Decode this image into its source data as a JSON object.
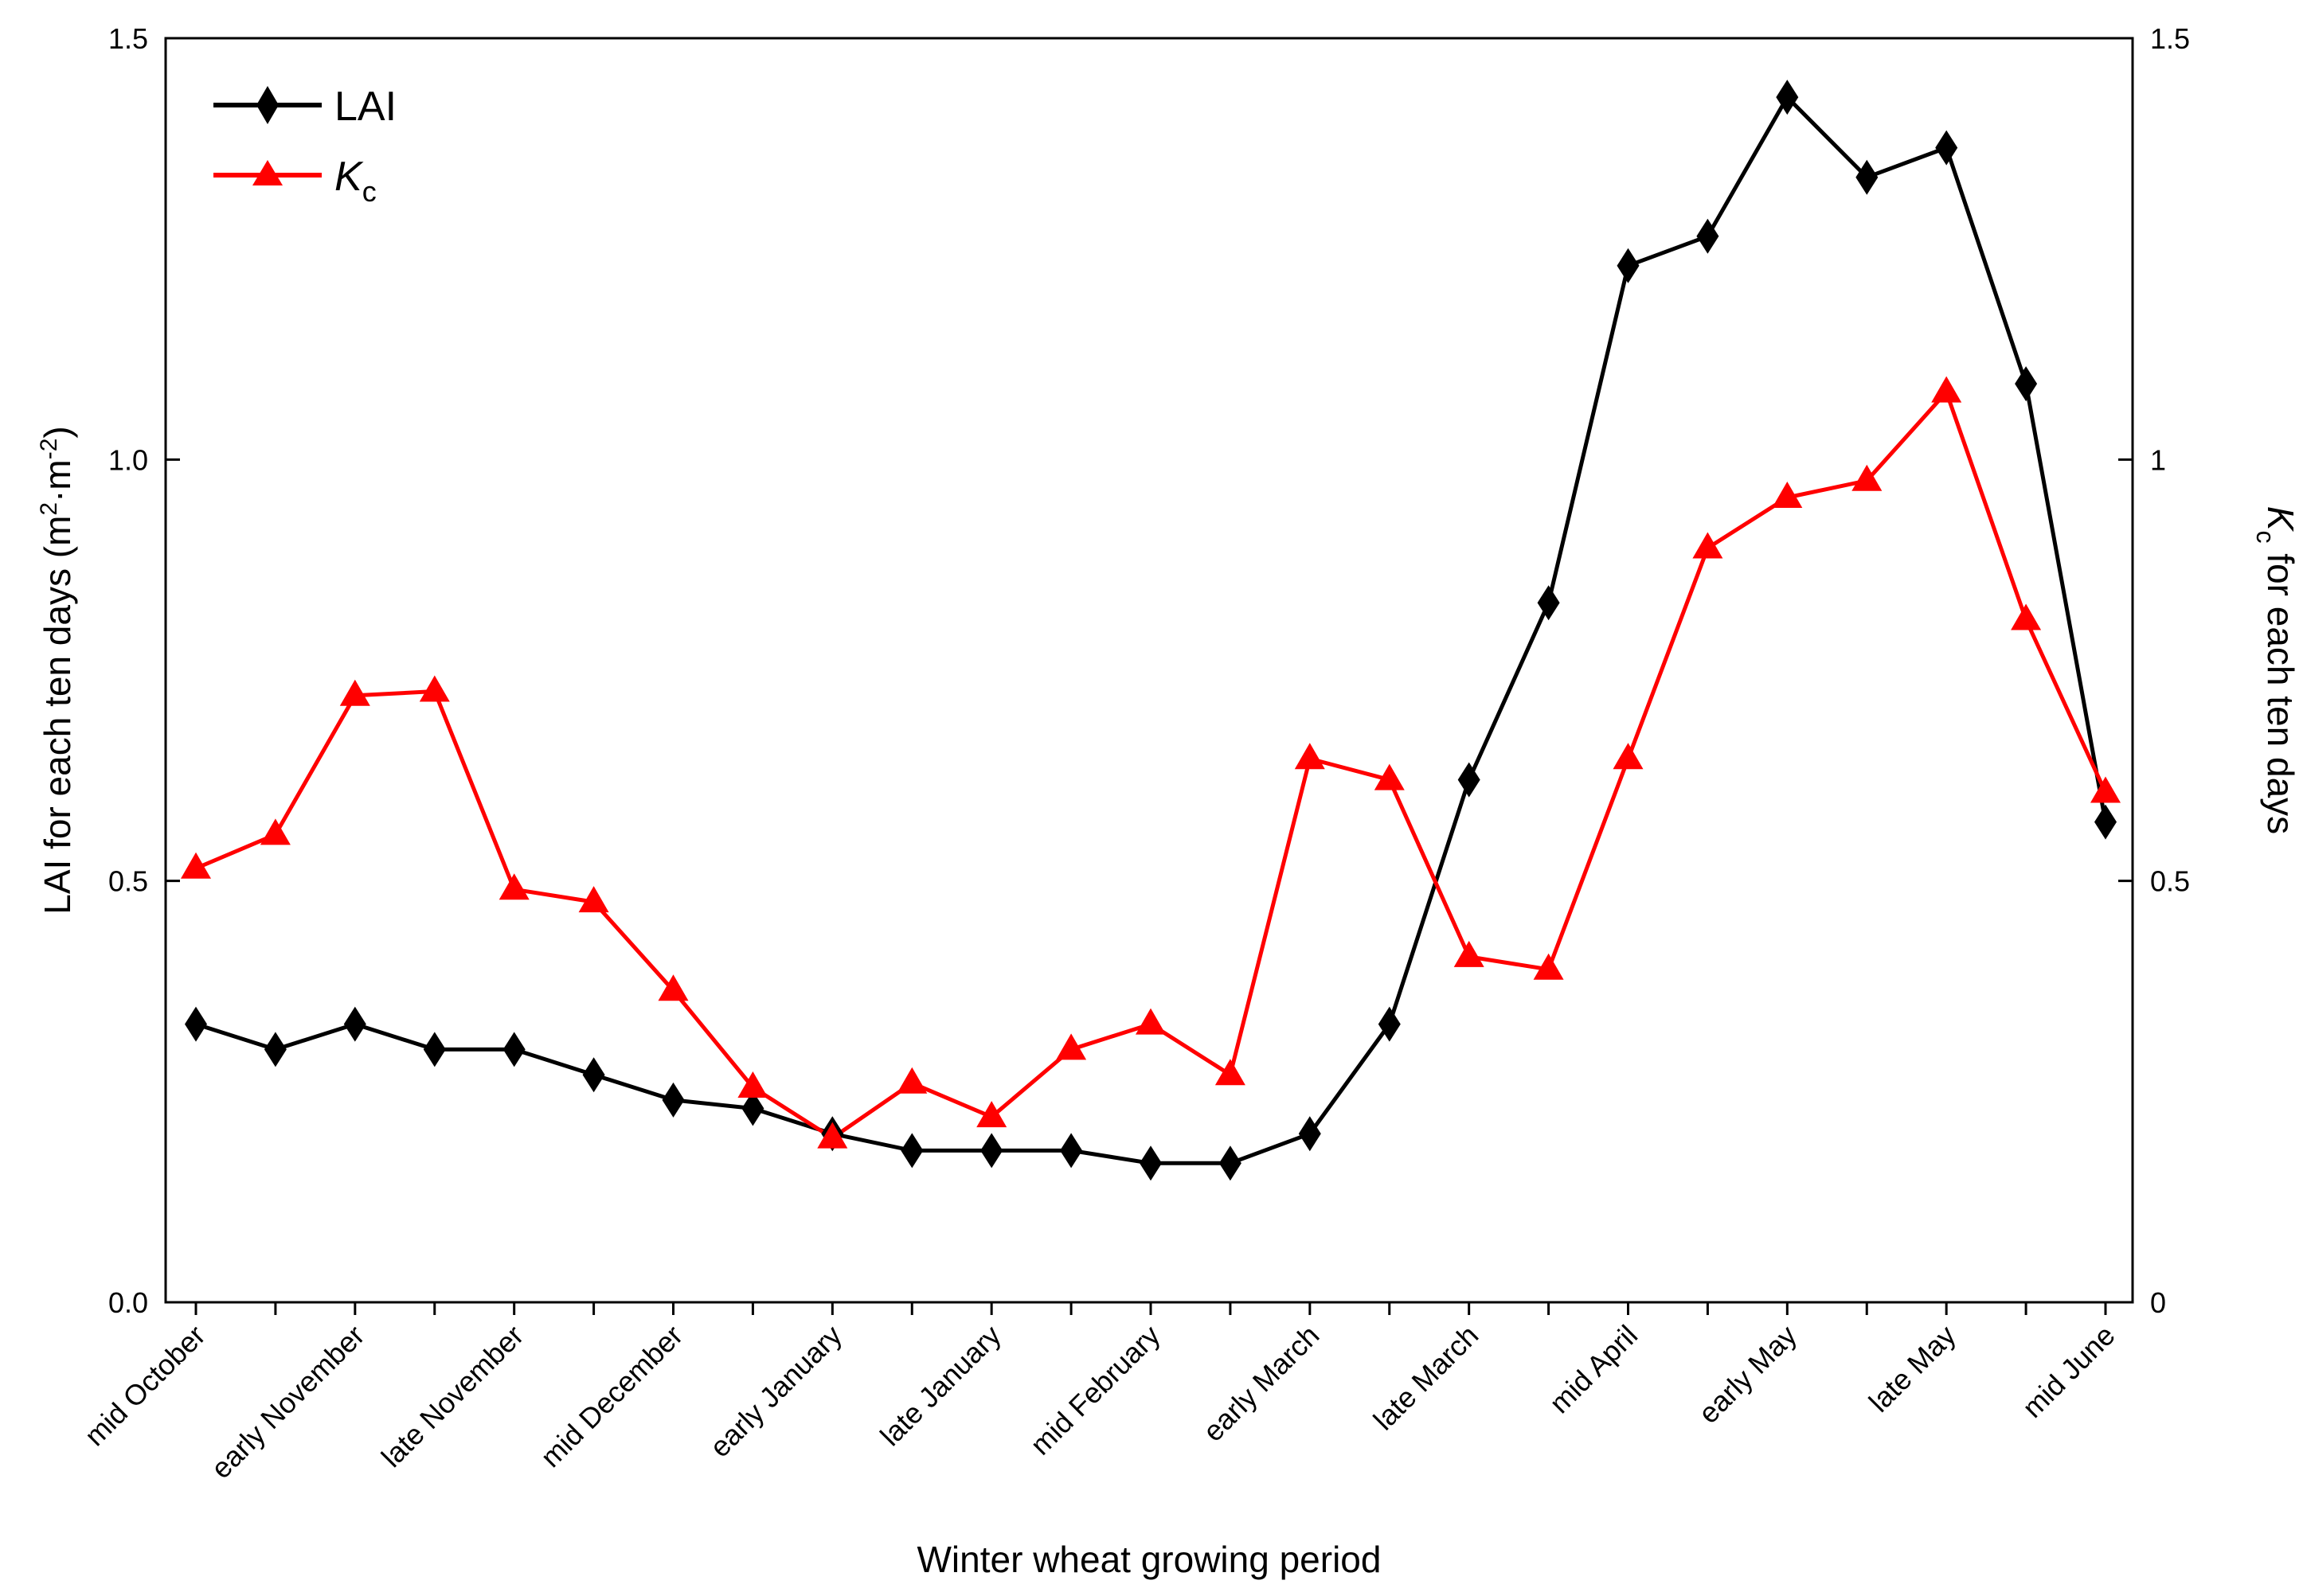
{
  "chart_data": {
    "type": "line",
    "xlabel": "Winter wheat growing period",
    "ylabel_left": {
      "main": "LAI for each ten days (m",
      "sup1": "2",
      "mid": "·m",
      "sup2": "-2",
      "end": ")"
    },
    "ylabel_right": {
      "symbol": "K",
      "subscript": "c",
      "rest": " for each ten days"
    },
    "ylim_left": [
      0,
      1.5
    ],
    "ylim_right": [
      0,
      1.5
    ],
    "yticks_left": [
      "0.0",
      "0.5",
      "1.0",
      "1.5"
    ],
    "yticks_right": [
      "0",
      "0.5",
      "1",
      "1.5"
    ],
    "x_count": 25,
    "x_tick_labels": [
      "mid October",
      "early November",
      "late November",
      "mid December",
      "early January",
      "late January",
      "mid February",
      "early March",
      "late March",
      "mid April",
      "early May",
      "late May",
      "mid June"
    ],
    "legend": {
      "position": "top-left",
      "entries": [
        {
          "label": "LAI",
          "color": "#000000",
          "marker": "diamond"
        },
        {
          "symbol": "K",
          "subscript": "c",
          "color": "#ff0000",
          "marker": "triangle"
        }
      ]
    },
    "series": [
      {
        "name": "LAI",
        "axis": "left",
        "color": "#000000",
        "marker": "diamond",
        "values": [
          0.33,
          0.3,
          0.33,
          0.3,
          0.3,
          0.27,
          0.24,
          0.23,
          0.2,
          0.18,
          0.18,
          0.18,
          0.165,
          0.165,
          0.2,
          0.33,
          0.62,
          0.83,
          1.23,
          1.265,
          1.43,
          1.335,
          1.37,
          1.09,
          0.57
        ]
      },
      {
        "name": "Kc",
        "axis": "right",
        "color": "#ff0000",
        "marker": "triangle",
        "values": [
          0.515,
          0.555,
          0.72,
          0.725,
          0.49,
          0.475,
          0.37,
          0.255,
          0.195,
          0.26,
          0.22,
          0.3,
          0.33,
          0.27,
          0.645,
          0.62,
          0.41,
          0.395,
          0.645,
          0.895,
          0.955,
          0.975,
          1.08,
          0.81,
          0.605
        ]
      }
    ]
  }
}
